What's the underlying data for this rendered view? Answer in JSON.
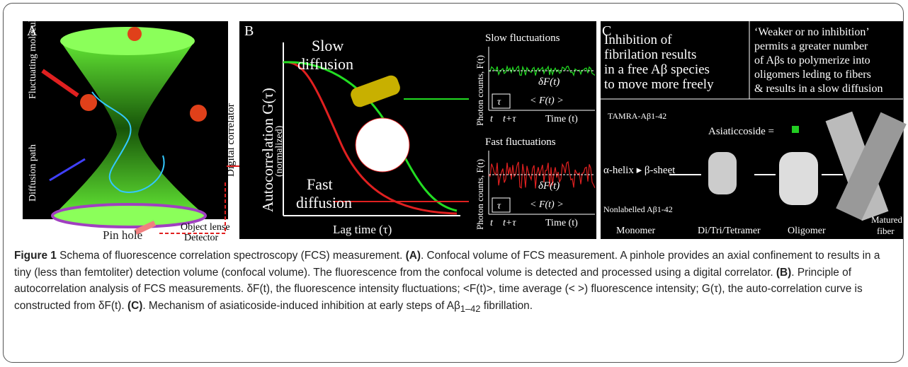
{
  "panel_a": {
    "label": "A",
    "fluctuating": "Fluctuating molecules",
    "diffusion_path": "Diffusion path",
    "correlator": "Digital correlator",
    "object_lense": "Object lense",
    "pin_hole": "Pin hole",
    "detector": "Detector"
  },
  "panel_b": {
    "label": "B",
    "slow_1": "Slow",
    "slow_2": "diffusion",
    "y_axis": "Autocorrelation G(τ)",
    "y_axis_note": "(normalized)",
    "fast_1": "Fast",
    "fast_2": "diffusion",
    "x_axis": "Lag time (τ)",
    "slow_plot": {
      "title": "Slow fluctuations",
      "y_axis": "Photon counts, F(t)",
      "delta": "δF(t)",
      "mean": "< F(t) >",
      "tau": "τ",
      "t": "t",
      "t_tau": "t+τ",
      "x_axis": "Time (t)"
    },
    "fast_plot": {
      "title": "Fast fluctuations",
      "y_axis": "Photon counts, F(t)",
      "delta": "δF(t)",
      "mean": "< F(t) >",
      "tau": "τ",
      "t": "t",
      "t_tau": "t+τ",
      "x_axis": "Time (t)"
    }
  },
  "panel_c": {
    "label": "C",
    "left_text": [
      "Inhibition of",
      "fibrilation results",
      "in a free Aβ species",
      "to move more freely"
    ],
    "right_text": [
      "‘Weaker or no inhibition’",
      "permits a greater number",
      "of Aβs to polymerize into",
      "oligomers leding to fibers",
      "& results in a slow diffusion"
    ],
    "tamra": "TAMRA-Aβ1-42",
    "asiaticoside": "Asiaticcoside =",
    "helix": "α-helix ▸ β-sheet",
    "nonlabelled": "Nonlabelled Aβ1-42",
    "monomer": "Monomer",
    "oligomers": "Di/Tri/Tetramer",
    "oligomer": "Oligomer",
    "fiber_1": "Matured",
    "fiber_2": "fiber"
  },
  "caption": {
    "label": "Figure 1",
    "p1": " Schema of fluorescence correlation spectroscopy (FCS) measurement. ",
    "ref_a": "(A)",
    "p2": ". Confocal volume of FCS measurement. A pinhole provides an axial confinement to results in a tiny (less than femtoliter) detection volume (confocal volume). The fluorescence from the confocal volume is detected and processed using a digital correlator. ",
    "ref_b": "(B)",
    "p3": ". Principle of autocorrelation analysis of FCS measurements. δF(t), the fluorescence intensity fluctuations; <F(t)>, time average (< >) fluorescence intensity; G(τ), the auto-correlation curve is constructed from δF(t). ",
    "ref_c": "(C)",
    "p4": ". Mechanism of asiaticoside-induced inhibition at early steps of Aβ",
    "sub": "1–42",
    "p5": " fibrillation."
  }
}
